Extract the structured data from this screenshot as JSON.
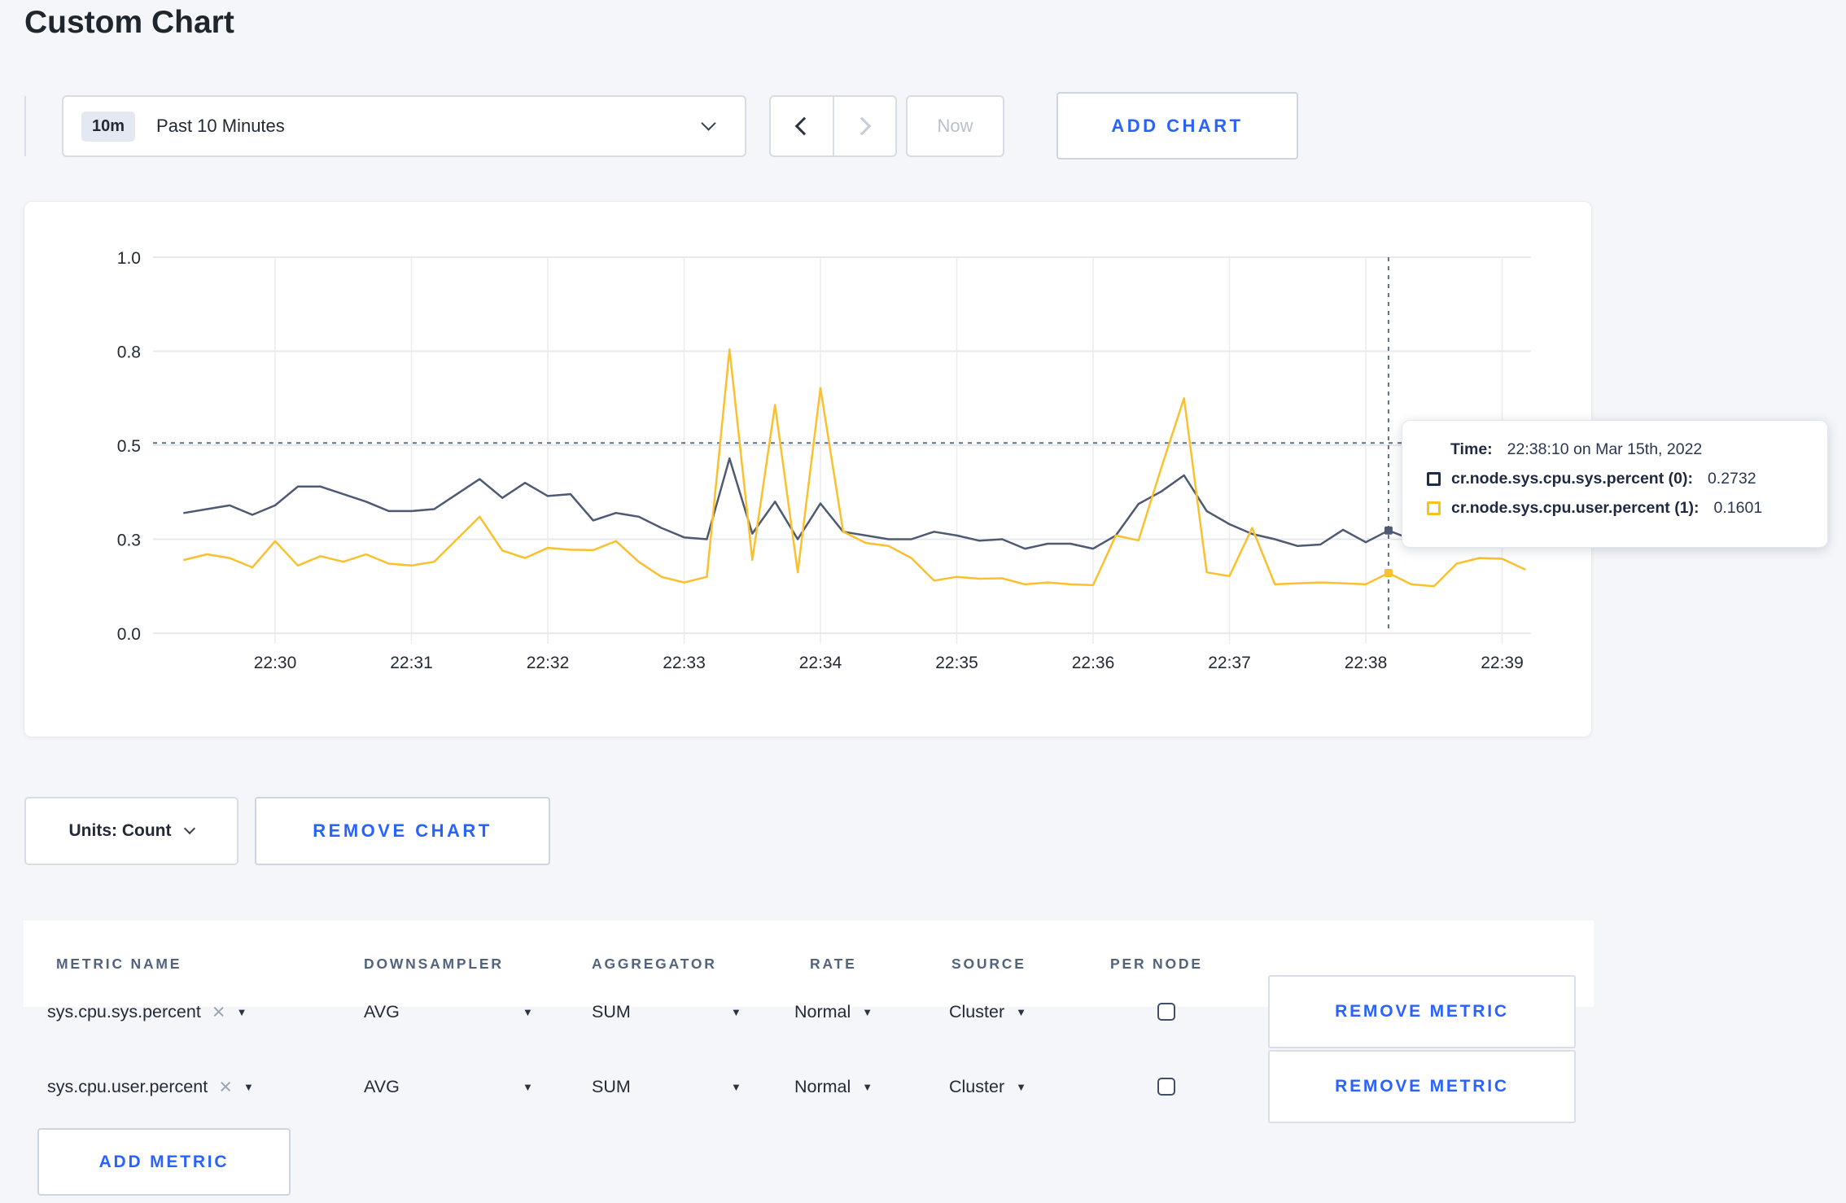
{
  "page": {
    "title": "Custom Chart"
  },
  "colors": {
    "accent_blue": "#2962ff",
    "series_sys": "#4e5a72",
    "series_user": "#fbc02d",
    "swatch_sys": "#1d2c4e",
    "swatch_user": "#fbbf24",
    "crosshair": "#5a7186"
  },
  "toolbar": {
    "time_badge": "10m",
    "time_label": "Past 10 Minutes",
    "now_label": "Now",
    "add_chart_label": "ADD CHART"
  },
  "tooltip": {
    "time_label": "Time:",
    "time_value": "22:38:10 on Mar 15th, 2022",
    "entries": [
      {
        "label": "cr.node.sys.cpu.sys.percent (0):",
        "value": "0.2732",
        "color": "#1d2c4e"
      },
      {
        "label": "cr.node.sys.cpu.user.percent (1):",
        "value": "0.1601",
        "color": "#fbbf24"
      }
    ]
  },
  "chart_controls": {
    "units_label": "Units: Count",
    "remove_chart_label": "REMOVE CHART"
  },
  "metrics_table": {
    "headers": [
      "METRIC NAME",
      "DOWNSAMPLER",
      "AGGREGATOR",
      "RATE",
      "SOURCE",
      "PER NODE"
    ],
    "remove_metric_label": "REMOVE METRIC",
    "add_metric_label": "ADD METRIC",
    "rows": [
      {
        "metric_name": "sys.cpu.sys.percent",
        "downsampler": "AVG",
        "aggregator": "SUM",
        "rate": "Normal",
        "source": "Cluster",
        "per_node_checked": false
      },
      {
        "metric_name": "sys.cpu.user.percent",
        "downsampler": "AVG",
        "aggregator": "SUM",
        "rate": "Normal",
        "source": "Cluster",
        "per_node_checked": false
      }
    ]
  },
  "chart_data": {
    "type": "line",
    "title": "",
    "xlabel": "",
    "ylabel": "",
    "ylim": [
      0,
      1
    ],
    "grid": true,
    "x_tick_labels": [
      "22:30",
      "22:31",
      "22:32",
      "22:33",
      "22:34",
      "22:35",
      "22:36",
      "22:37",
      "22:38",
      "22:39"
    ],
    "y_ticks": [
      {
        "value": 0.0,
        "label": "0.0"
      },
      {
        "value": 0.25,
        "label": "0.3"
      },
      {
        "value": 0.5,
        "label": "0.5"
      },
      {
        "value": 0.75,
        "label": "0.8"
      },
      {
        "value": 1.0,
        "label": "1.0"
      }
    ],
    "x_start_offset_seconds": -40,
    "x_step_seconds": 10,
    "crosshair": {
      "time_offset_seconds": 490,
      "y_value": 0.506,
      "time_text": "22:38:10 on Mar 15th, 2022"
    },
    "series": [
      {
        "name": "cr.node.sys.cpu.sys.percent",
        "color": "#4e5a72",
        "hover_value": 0.2732,
        "values": [
          0.32,
          0.33,
          0.34,
          0.315,
          0.34,
          0.39,
          0.39,
          0.37,
          0.35,
          0.325,
          0.325,
          0.33,
          0.37,
          0.41,
          0.36,
          0.4,
          0.365,
          0.37,
          0.3,
          0.32,
          0.31,
          0.28,
          0.255,
          0.25,
          0.465,
          0.265,
          0.35,
          0.25,
          0.345,
          0.27,
          0.26,
          0.25,
          0.25,
          0.27,
          0.26,
          0.246,
          0.25,
          0.225,
          0.238,
          0.238,
          0.225,
          0.26,
          0.344,
          0.377,
          0.42,
          0.325,
          0.29,
          0.264,
          0.25,
          0.232,
          0.236,
          0.275,
          0.242,
          0.2732,
          0.25,
          0.27,
          0.3,
          0.29,
          0.3,
          0.3
        ]
      },
      {
        "name": "cr.node.sys.cpu.user.percent",
        "color": "#fbc02d",
        "hover_value": 0.1601,
        "values": [
          0.195,
          0.21,
          0.2,
          0.175,
          0.245,
          0.18,
          0.205,
          0.19,
          0.21,
          0.185,
          0.18,
          0.19,
          0.25,
          0.31,
          0.22,
          0.2,
          0.227,
          0.222,
          0.221,
          0.245,
          0.19,
          0.15,
          0.135,
          0.15,
          0.755,
          0.195,
          0.607,
          0.162,
          0.652,
          0.27,
          0.24,
          0.232,
          0.2,
          0.14,
          0.15,
          0.145,
          0.146,
          0.13,
          0.135,
          0.13,
          0.128,
          0.26,
          0.247,
          0.44,
          0.625,
          0.162,
          0.152,
          0.28,
          0.13,
          0.133,
          0.135,
          0.133,
          0.13,
          0.1601,
          0.13,
          0.125,
          0.185,
          0.2,
          0.198,
          0.17
        ]
      }
    ]
  }
}
